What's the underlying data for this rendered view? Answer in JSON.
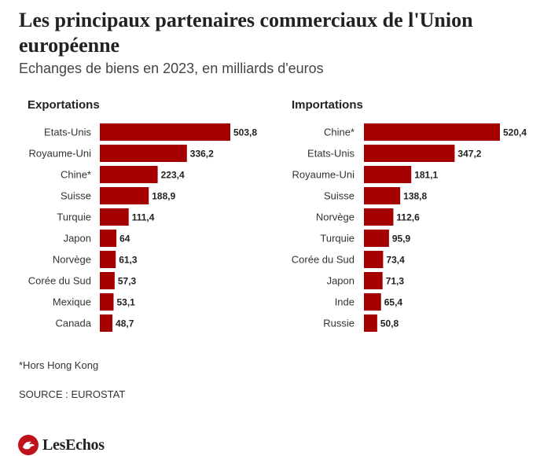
{
  "title": "Les principaux partenaires commerciaux de l'Union européenne",
  "subtitle": "Echanges de biens en 2023, en milliards d'euros",
  "footnote": "*Hors Hong Kong",
  "source": "SOURCE : EUROSTAT",
  "brand": "LesEchos",
  "colors": {
    "bar": "#a50000",
    "text": "#222222"
  },
  "chart_data": [
    {
      "type": "bar",
      "orientation": "horizontal",
      "title": "Exportations",
      "categories": [
        "Etats-Unis",
        "Royaume-Uni",
        "Chine*",
        "Suisse",
        "Turquie",
        "Japon",
        "Norvège",
        "Corée du Sud",
        "Mexique",
        "Canada"
      ],
      "values": [
        503.8,
        336.2,
        223.4,
        188.9,
        111.4,
        64,
        61.3,
        57.3,
        53.1,
        48.7
      ],
      "value_labels": [
        "503,8",
        "336,2",
        "223,4",
        "188,9",
        "111,4",
        "64",
        "61,3",
        "57,3",
        "53,1",
        "48,7"
      ],
      "grid": false
    },
    {
      "type": "bar",
      "orientation": "horizontal",
      "title": "Importations",
      "categories": [
        "Chine*",
        "Etats-Unis",
        "Royaume-Uni",
        "Suisse",
        "Norvège",
        "Turquie",
        "Corée du Sud",
        "Japon",
        "Inde",
        "Russie"
      ],
      "values": [
        520.4,
        347.2,
        181.1,
        138.8,
        112.6,
        95.9,
        73.4,
        71.3,
        65.4,
        50.8
      ],
      "value_labels": [
        "520,4",
        "347,2",
        "181,1",
        "138,8",
        "112,6",
        "95,9",
        "73,4",
        "71,3",
        "65,4",
        "50,8"
      ],
      "grid": false
    }
  ]
}
